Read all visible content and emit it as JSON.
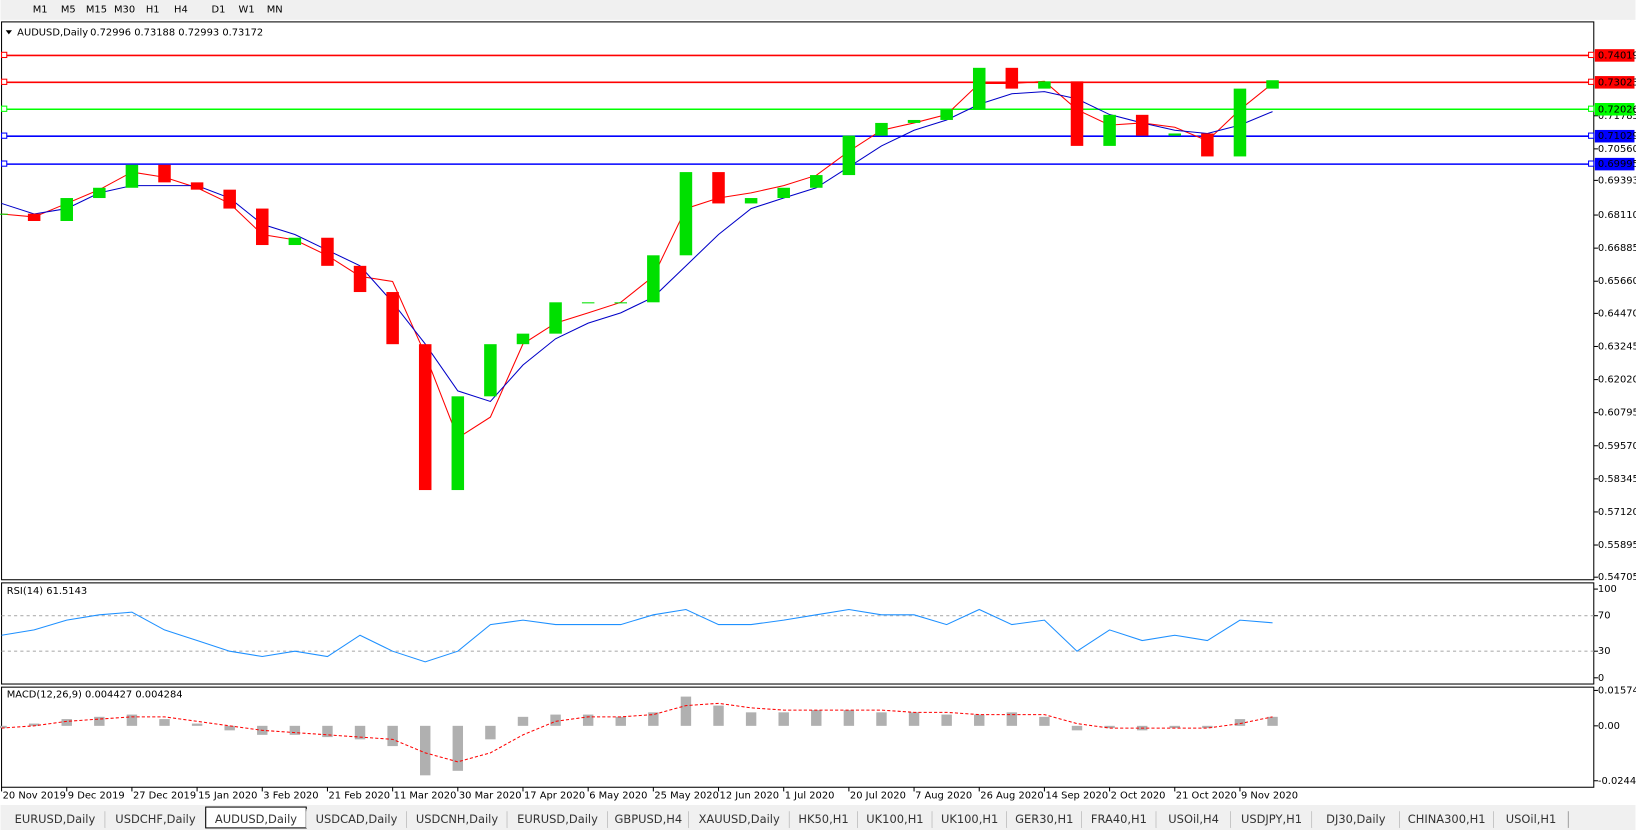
{
  "toolbar": {
    "timeframes": [
      "M1",
      "M5",
      "M15",
      "M30",
      "H1",
      "H4",
      "D1",
      "W1",
      "MN"
    ]
  },
  "chart_data": [
    {
      "type": "candlestick",
      "title": "AUDUSD,Daily",
      "quote": "0.72996 0.73188 0.72993 0.73172",
      "x": [
        0,
        7,
        14,
        21,
        28,
        35,
        42,
        49,
        56,
        63,
        70,
        77,
        84,
        91,
        98,
        105,
        112,
        119,
        126,
        133,
        140,
        147,
        154,
        161,
        168,
        175,
        182,
        189,
        196,
        203,
        210,
        217,
        224,
        231,
        238,
        245,
        252,
        259,
        266,
        273
      ],
      "xlim": [
        0,
        342
      ],
      "xticks": [
        {
          "value": 0,
          "label": "20 Nov 2019"
        },
        {
          "value": 14,
          "label": "9 Dec 2019"
        },
        {
          "value": 28,
          "label": "27 Dec 2019"
        },
        {
          "value": 42,
          "label": "15 Jan 2020"
        },
        {
          "value": 56,
          "label": "3 Feb 2020"
        },
        {
          "value": 70,
          "label": "21 Feb 2020"
        },
        {
          "value": 84,
          "label": "11 Mar 2020"
        },
        {
          "value": 98,
          "label": "30 Mar 2020"
        },
        {
          "value": 112,
          "label": "17 Apr 2020"
        },
        {
          "value": 126,
          "label": "6 May 2020"
        },
        {
          "value": 140,
          "label": "25 May 2020"
        },
        {
          "value": 154,
          "label": "12 Jun 2020"
        },
        {
          "value": 168,
          "label": "1 Jul 2020"
        },
        {
          "value": 182,
          "label": "20 Jul 2020"
        },
        {
          "value": 196,
          "label": "7 Aug 2020"
        },
        {
          "value": 210,
          "label": "26 Aug 2020"
        },
        {
          "value": 224,
          "label": "14 Sep 2020"
        },
        {
          "value": 238,
          "label": "2 Oct 2020"
        },
        {
          "value": 252,
          "label": "21 Oct 2020"
        },
        {
          "value": 266,
          "label": "9 Nov 2020"
        }
      ],
      "ylim": [
        0.5461,
        0.7526
      ],
      "yticks": [
        0.71785,
        {
          "value": 0.7056,
          "label": "0.70560"
        },
        0.69393,
        {
          "value": 0.6811,
          "label": "0.68110"
        },
        0.66885,
        {
          "value": 0.6566,
          "label": "0.65660"
        },
        {
          "value": 0.6447,
          "label": "0.64470"
        },
        0.63245,
        {
          "value": 0.6202,
          "label": "0.62020"
        },
        0.60795,
        {
          "value": 0.5957,
          "label": "0.59570"
        },
        0.58345,
        {
          "value": 0.5712,
          "label": "0.57120"
        },
        0.55895,
        0.54705
      ],
      "levels": [
        {
          "value": 0.74019,
          "color": "#ff0000"
        },
        {
          "value": 0.73023,
          "color": "#ff0000"
        },
        {
          "value": 0.72026,
          "color": "#00ff00"
        },
        {
          "value": 0.71029,
          "color": "#0000ff"
        },
        {
          "value": 0.69995,
          "color": "#0000ff"
        }
      ],
      "up_color": "#00e000",
      "down_color": "#ff0000",
      "close": [
        0.6816,
        0.6789,
        0.6874,
        0.6912,
        0.6997,
        0.6932,
        0.6905,
        0.6835,
        0.67,
        0.6727,
        0.6623,
        0.6526,
        0.6333,
        0.5793,
        0.614,
        0.6333,
        0.6372,
        0.6488,
        0.6488,
        0.6488,
        0.6662,
        0.697,
        0.6854,
        0.6874,
        0.6912,
        0.6959,
        0.7105,
        0.7152,
        0.7163,
        0.7202,
        0.7356,
        0.7279,
        0.7306,
        0.7067,
        0.7182,
        0.7105,
        0.7113,
        0.7028,
        0.7279,
        0.731
      ],
      "series": [
        {
          "color": "#ff0000",
          "values": [
            0.6815,
            0.6804,
            0.6854,
            0.6905,
            0.697,
            0.6951,
            0.6912,
            0.6854,
            0.6739,
            0.6719,
            0.6661,
            0.6584,
            0.6565,
            0.6295,
            0.5986,
            0.6063,
            0.6334,
            0.6411,
            0.6449,
            0.6488,
            0.6584,
            0.6835,
            0.6874,
            0.6893,
            0.692,
            0.6958,
            0.7047,
            0.7125,
            0.7152,
            0.7183,
            0.7298,
            0.7298,
            0.7306,
            0.7201,
            0.7144,
            0.7152,
            0.7136,
            0.7086,
            0.7201,
            0.7298
          ]
        },
        {
          "color": "#0000c8",
          "values": [
            0.6854,
            0.6815,
            0.6835,
            0.6893,
            0.692,
            0.692,
            0.692,
            0.6874,
            0.6777,
            0.6739,
            0.6681,
            0.6623,
            0.6488,
            0.6334,
            0.616,
            0.6121,
            0.6256,
            0.6353,
            0.6411,
            0.6449,
            0.6507,
            0.6623,
            0.6739,
            0.6835,
            0.6874,
            0.6912,
            0.6989,
            0.7067,
            0.7125,
            0.7163,
            0.7221,
            0.726,
            0.7268,
            0.7241,
            0.7183,
            0.7152,
            0.7125,
            0.7113,
            0.7144,
            0.7194
          ]
        }
      ]
    },
    {
      "type": "line",
      "title": "RSI(14) 61.5143",
      "x": [
        0,
        7,
        14,
        21,
        28,
        35,
        42,
        49,
        56,
        63,
        70,
        77,
        84,
        91,
        98,
        105,
        112,
        119,
        126,
        133,
        140,
        147,
        154,
        161,
        168,
        175,
        182,
        189,
        196,
        203,
        210,
        217,
        224,
        231,
        238,
        245,
        252,
        259,
        266,
        273
      ],
      "xlim": [
        0,
        342
      ],
      "ylim": [
        -7,
        107
      ],
      "yticks": [
        100,
        70,
        30,
        0
      ],
      "dashed_levels": [
        70,
        30
      ],
      "series": [
        {
          "color": "#1e90ff",
          "values": [
            48,
            54,
            65,
            71,
            74,
            54,
            42,
            30,
            24,
            30,
            24,
            48,
            30,
            18,
            30,
            60,
            65,
            60,
            60,
            60,
            71,
            77,
            60,
            60,
            65,
            71,
            77,
            71,
            71,
            60,
            77,
            60,
            65,
            30,
            54,
            42,
            48,
            42,
            65,
            62
          ]
        }
      ]
    },
    {
      "type": "bar",
      "title": "MACD(12,26,9) 0.004427 0.004284",
      "x": [
        0,
        7,
        14,
        21,
        28,
        35,
        42,
        49,
        56,
        63,
        70,
        77,
        84,
        91,
        98,
        105,
        112,
        119,
        126,
        133,
        140,
        147,
        154,
        161,
        168,
        175,
        182,
        189,
        196,
        203,
        210,
        217,
        224,
        231,
        238,
        245,
        252,
        259,
        266,
        273
      ],
      "xlim": [
        0,
        342
      ],
      "ylim": [
        -0.0273,
        0.0172
      ],
      "yticks": [
        0.015741,
        {
          "value": 0,
          "label": "0.00"
        },
        -0.024412
      ],
      "series": [
        {
          "color": "#b0b0b0",
          "kind": "bar",
          "values": [
            -0.001,
            0.001,
            0.003,
            0.004,
            0.005,
            0.003,
            0.001,
            -0.002,
            -0.004,
            -0.004,
            -0.005,
            -0.006,
            -0.009,
            -0.022,
            -0.02,
            -0.006,
            0.004,
            0.005,
            0.005,
            0.004,
            0.006,
            0.013,
            0.009,
            0.006,
            0.006,
            0.007,
            0.007,
            0.006,
            0.006,
            0.005,
            0.005,
            0.006,
            0.004,
            -0.002,
            -0.001,
            -0.002,
            -0.001,
            -0.001,
            0.003,
            0.004
          ]
        },
        {
          "color": "#ff0000",
          "kind": "line",
          "values": [
            -0.001,
            0,
            0.002,
            0.003,
            0.004,
            0.004,
            0.002,
            0,
            -0.002,
            -0.003,
            -0.004,
            -0.005,
            -0.006,
            -0.012,
            -0.016,
            -0.012,
            -0.004,
            0.002,
            0.004,
            0.004,
            0.005,
            0.009,
            0.01,
            0.008,
            0.007,
            0.007,
            0.007,
            0.007,
            0.006,
            0.006,
            0.005,
            0.005,
            0.005,
            0.001,
            -0.001,
            -0.001,
            -0.001,
            -0.001,
            0.001,
            0.004
          ]
        }
      ]
    }
  ],
  "tabs": {
    "items": [
      "EURUSD,Daily",
      "USDCHF,Daily",
      "AUDUSD,Daily",
      "USDCAD,Daily",
      "USDCNH,Daily",
      "EURUSD,Daily",
      "GBPUSD,H4",
      "XAUUSD,Daily",
      "HK50,H1",
      "UK100,H1",
      "UK100,H1",
      "GER30,H1",
      "FRA40,H1",
      "USOil,H4",
      "USDJPY,H1",
      "DJ30,Daily",
      "CHINA300,H1",
      "USOil,H1"
    ],
    "active": 2
  }
}
